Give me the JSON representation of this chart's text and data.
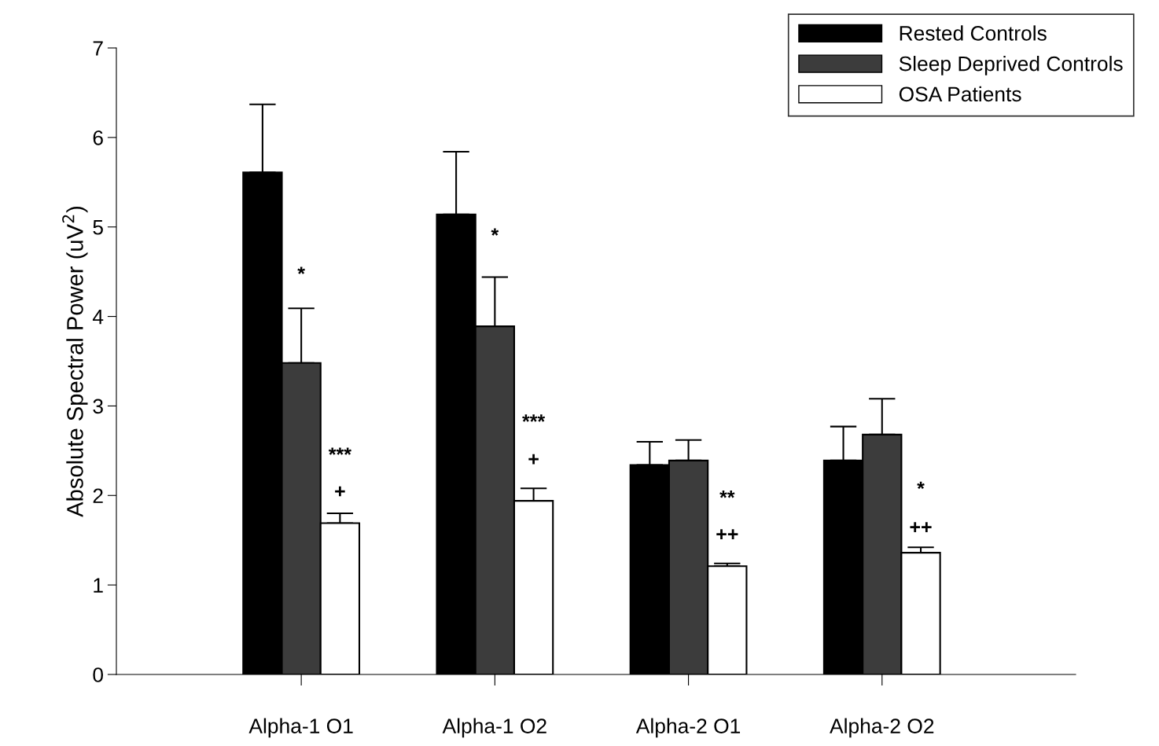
{
  "chart_data": {
    "type": "bar",
    "ylabel": "Absolute Spectral Power (uV$^{2}$)",
    "categories": [
      "Alpha-1 O1",
      "Alpha-1 O2",
      "Alpha-2 O1",
      "Alpha-2 O2"
    ],
    "series": [
      {
        "name": "Rested Controls",
        "color": "#000000",
        "values": [
          5.61,
          5.14,
          2.34,
          2.39
        ],
        "errors": [
          [
            5.61,
            6.37
          ],
          [
            5.14,
            5.84
          ],
          [
            2.34,
            2.6
          ],
          [
            2.39,
            2.77
          ]
        ]
      },
      {
        "name": "Sleep Deprived Controls",
        "color": "#3c3c3c",
        "values": [
          3.48,
          3.89,
          2.39,
          2.68
        ],
        "errors": [
          [
            3.48,
            4.09
          ],
          [
            3.89,
            4.44
          ],
          [
            2.39,
            2.62
          ],
          [
            2.68,
            3.08
          ]
        ]
      },
      {
        "name": "OSA Patients",
        "color": "#ffffff",
        "values": [
          1.69,
          1.94,
          1.21,
          1.36
        ],
        "errors": [
          [
            1.69,
            1.8
          ],
          [
            1.94,
            2.08
          ],
          [
            1.21,
            1.24
          ],
          [
            1.36,
            1.42
          ]
        ]
      }
    ],
    "ylim": [
      0,
      7
    ],
    "yticks": [
      0,
      1,
      2,
      3,
      4,
      5,
      6,
      7
    ],
    "grid": false,
    "legend": "top right",
    "annotations": [
      "*",
      "***",
      "+",
      "*",
      "***",
      "+",
      "**",
      "++",
      "*",
      "++"
    ]
  }
}
